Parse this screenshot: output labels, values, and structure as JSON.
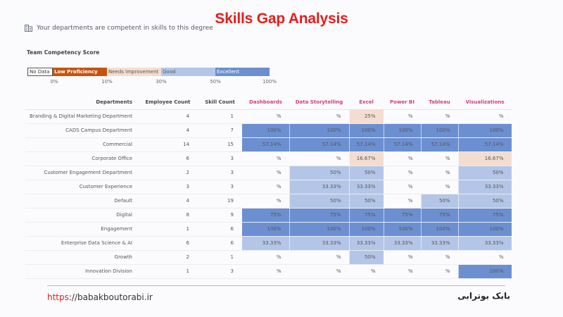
{
  "header": {
    "title": "Skills Gap Analysis",
    "subtitle": "Your departments are competent in skills to this degree",
    "subtitle_icon": "building-icon"
  },
  "legend": {
    "title": "Team Competency Score",
    "segments": [
      {
        "label": "No Data",
        "color": "#ffffff"
      },
      {
        "label": "Low Proficiency",
        "color": "#c8520f"
      },
      {
        "label": "Needs Improvement",
        "color": "#f3ddd0"
      },
      {
        "label": "Good",
        "color": "#b3c6e7"
      },
      {
        "label": "Excellent",
        "color": "#6b8fd0"
      }
    ],
    "ticks": [
      "0%",
      "10%",
      "30%",
      "50%",
      "100%"
    ]
  },
  "table": {
    "columns": [
      "Departments",
      "Employee Count",
      "Skill Count",
      "Dashboards",
      "Data Storytelling",
      "Excel",
      "Power BI",
      "Tableau",
      "Visualizations"
    ],
    "rows": [
      {
        "dept": "Branding & Digital Marketing Department",
        "employees": "4",
        "skills": "1",
        "values": [
          "%",
          "%",
          "25%",
          "%",
          "%",
          "%"
        ],
        "levels": [
          "none",
          "none",
          "needs",
          "none",
          "none",
          "none"
        ]
      },
      {
        "dept": "CADS Campus Department",
        "employees": "4",
        "skills": "7",
        "values": [
          "100%",
          "100%",
          "100%",
          "100%",
          "100%",
          "100%"
        ],
        "levels": [
          "exc",
          "exc",
          "exc",
          "exc",
          "exc",
          "exc"
        ]
      },
      {
        "dept": "Commercial",
        "employees": "14",
        "skills": "15",
        "values": [
          "57.14%",
          "57.14%",
          "57.14%",
          "57.14%",
          "57.14%",
          "57.14%"
        ],
        "levels": [
          "exc",
          "exc",
          "exc",
          "exc",
          "exc",
          "exc"
        ]
      },
      {
        "dept": "Corporate Office",
        "employees": "6",
        "skills": "3",
        "values": [
          "%",
          "%",
          "16.67%",
          "%",
          "%",
          "16.67%"
        ],
        "levels": [
          "none",
          "none",
          "needs",
          "none",
          "none",
          "needs"
        ]
      },
      {
        "dept": "Customer Engagement Department",
        "employees": "2",
        "skills": "3",
        "values": [
          "%",
          "50%",
          "50%",
          "%",
          "%",
          "50%"
        ],
        "levels": [
          "none",
          "good",
          "good",
          "none",
          "none",
          "good"
        ]
      },
      {
        "dept": "Customer Experience",
        "employees": "3",
        "skills": "3",
        "values": [
          "%",
          "33.33%",
          "33.33%",
          "%",
          "%",
          "33.33%"
        ],
        "levels": [
          "none",
          "good",
          "good",
          "none",
          "none",
          "good"
        ]
      },
      {
        "dept": "Default",
        "employees": "4",
        "skills": "19",
        "values": [
          "%",
          "50%",
          "50%",
          "%",
          "50%",
          "50%"
        ],
        "levels": [
          "none",
          "good",
          "good",
          "none",
          "good",
          "good"
        ]
      },
      {
        "dept": "Digital",
        "employees": "8",
        "skills": "9",
        "values": [
          "75%",
          "75%",
          "75%",
          "75%",
          "75%",
          "75%"
        ],
        "levels": [
          "exc",
          "exc",
          "exc",
          "exc",
          "exc",
          "exc"
        ]
      },
      {
        "dept": "Engagement",
        "employees": "1",
        "skills": "6",
        "values": [
          "100%",
          "100%",
          "100%",
          "100%",
          "100%",
          "100%"
        ],
        "levels": [
          "exc",
          "exc",
          "exc",
          "exc",
          "exc",
          "exc"
        ]
      },
      {
        "dept": "Enterprise Data Science & AI",
        "employees": "6",
        "skills": "6",
        "values": [
          "33.33%",
          "33.33%",
          "33.33%",
          "33.33%",
          "33.33%",
          "33.33%"
        ],
        "levels": [
          "good",
          "good",
          "good",
          "good",
          "good",
          "good"
        ]
      },
      {
        "dept": "Growth",
        "employees": "2",
        "skills": "1",
        "values": [
          "%",
          "%",
          "50%",
          "%",
          "%",
          "%"
        ],
        "levels": [
          "none",
          "none",
          "good",
          "none",
          "none",
          "none"
        ]
      },
      {
        "dept": "Innovation Division",
        "employees": "1",
        "skills": "3",
        "values": [
          "%",
          "%",
          "%",
          "%",
          "%",
          "100%"
        ],
        "levels": [
          "none",
          "none",
          "none",
          "none",
          "none",
          "exc"
        ]
      }
    ]
  },
  "footer": {
    "url_protocol": "https",
    "url_rest": "://babakboutorabi.ir",
    "author": "بابک بوترابی"
  }
}
